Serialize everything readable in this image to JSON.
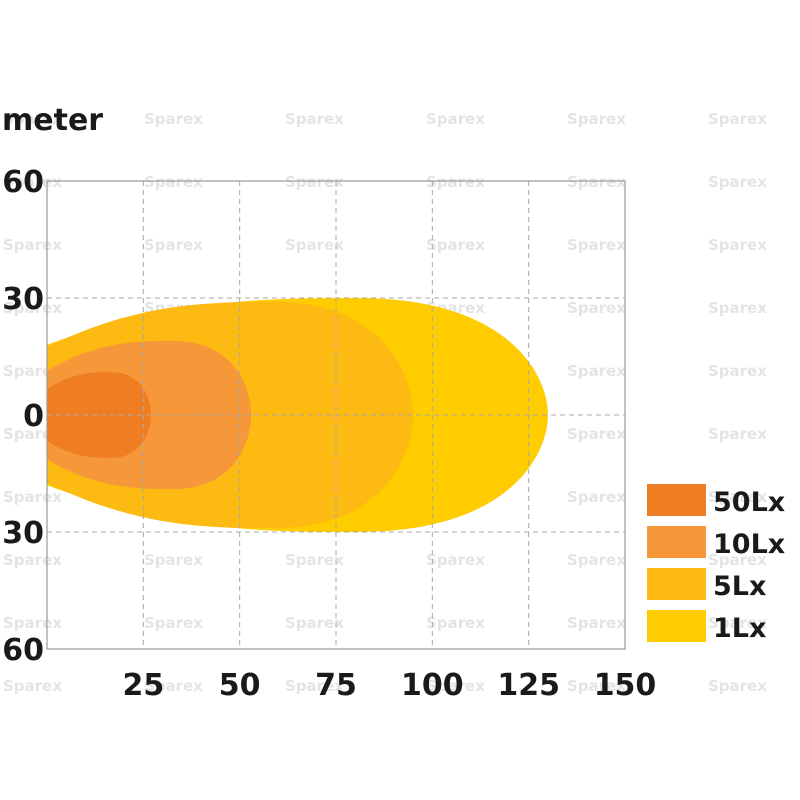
{
  "chart_data": {
    "type": "area",
    "title": "",
    "y_unit_label": "meter",
    "xlabel": "",
    "ylabel": "",
    "xlim": [
      0,
      150
    ],
    "ylim": [
      -60,
      60
    ],
    "x_ticks": [
      25,
      50,
      75,
      100,
      125,
      150
    ],
    "x_tick_labels": [
      "25",
      "50",
      "75",
      "100",
      "125",
      "150"
    ],
    "y_ticks": [
      60,
      30,
      0,
      -30,
      -60
    ],
    "y_tick_labels": [
      "60",
      "30",
      "0",
      "30",
      "60"
    ],
    "grid": true,
    "grid_style": "dashed",
    "legend_position": "right",
    "series": [
      {
        "name": "1Lx",
        "color": "#FFCC00",
        "reach": 130,
        "half_width": 30
      },
      {
        "name": "5Lx",
        "color": "#FDBA12",
        "reach": 95,
        "half_width": 29
      },
      {
        "name": "10Lx",
        "color": "#F6983A",
        "reach": 53,
        "half_width": 19
      },
      {
        "name": "50Lx",
        "color": "#EF7E22",
        "reach": 27,
        "half_width": 11
      }
    ],
    "watermark": "Sparex"
  }
}
